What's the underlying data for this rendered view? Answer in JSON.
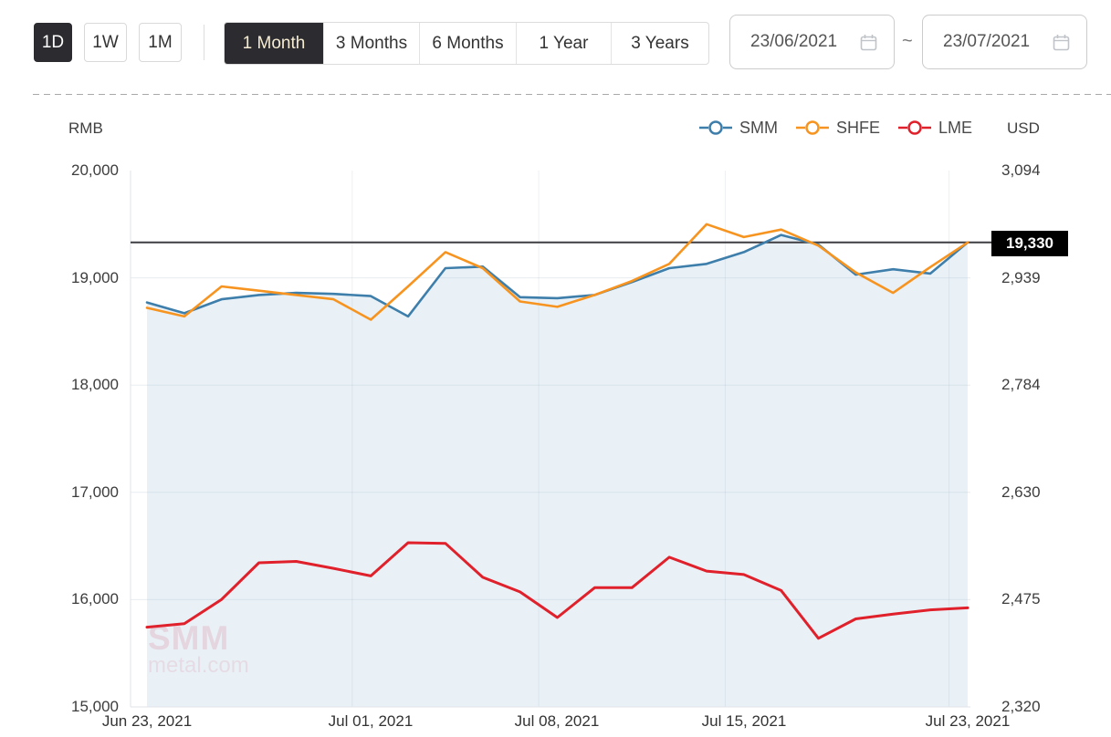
{
  "toolbar": {
    "interval_buttons": [
      {
        "label": "1D"
      },
      {
        "label": "1W"
      },
      {
        "label": "1M"
      }
    ],
    "range_tabs": [
      {
        "label": "1 Month"
      },
      {
        "label": "3 Months"
      },
      {
        "label": "6 Months"
      },
      {
        "label": "1 Year"
      },
      {
        "label": "3 Years"
      }
    ],
    "date_from": "23/06/2021",
    "date_separator": "~",
    "date_to": "23/07/2021"
  },
  "chart": {
    "left_axis_unit": "RMB",
    "right_axis_unit": "USD",
    "watermark": {
      "line1": "SMM",
      "line2": "metal.com"
    }
  },
  "chart_data": {
    "type": "line",
    "title": "",
    "legend_position": "top-right",
    "grid": true,
    "x": [
      "Jun 23",
      "Jun 24",
      "Jun 25",
      "Jun 28",
      "Jun 29",
      "Jun 30",
      "Jul 01",
      "Jul 02",
      "Jul 05",
      "Jul 06",
      "Jul 07",
      "Jul 08",
      "Jul 09",
      "Jul 12",
      "Jul 13",
      "Jul 14",
      "Jul 15",
      "Jul 16",
      "Jul 19",
      "Jul 20",
      "Jul 21",
      "Jul 22",
      "Jul 23"
    ],
    "x_tick_labels": [
      "Jun 23, 2021",
      "Jul 01, 2021",
      "Jul 08, 2021",
      "Jul 15, 2021",
      "Jul 23, 2021"
    ],
    "x_tick_indices": [
      0,
      6,
      11,
      16,
      22
    ],
    "series": [
      {
        "name": "SMM",
        "axis": "left",
        "color": "#3d7eab",
        "area": true,
        "area_color": "#e9f1f7",
        "values": [
          18770,
          18670,
          18800,
          18840,
          18860,
          18850,
          18830,
          18640,
          19090,
          19105,
          18820,
          18810,
          18840,
          18960,
          19090,
          19130,
          19240,
          19400,
          19310,
          19030,
          19080,
          19040,
          19330
        ]
      },
      {
        "name": "SHFE",
        "axis": "left",
        "color": "#f79420",
        "values": [
          18720,
          18640,
          18920,
          18880,
          18840,
          18800,
          18610,
          18920,
          19240,
          19090,
          18780,
          18730,
          18840,
          18970,
          19130,
          19500,
          19380,
          19450,
          19300,
          19050,
          18860,
          19100,
          19330
        ]
      },
      {
        "name": "LME",
        "axis": "right",
        "color": "#e0202a",
        "values": [
          2435,
          2440,
          2475,
          2528,
          2530,
          2520,
          2509,
          2557,
          2556,
          2507,
          2486,
          2449,
          2492,
          2492,
          2536,
          2516,
          2511,
          2488,
          2419,
          2447,
          2454,
          2460,
          2463
        ]
      }
    ],
    "y_axis_left": {
      "unit": "RMB",
      "range": [
        15000,
        20000
      ],
      "ticks": [
        "20,000",
        "19,000",
        "18,000",
        "17,000",
        "16,000",
        "15,000"
      ]
    },
    "y_axis_right": {
      "unit": "USD",
      "range": [
        2320,
        3094
      ],
      "ticks": [
        "3,094",
        "2,939",
        "2,784",
        "2,630",
        "2,475",
        "2,320"
      ]
    },
    "marker_line": {
      "value": 19330,
      "label": "19,330",
      "axis": "left",
      "color": "#3e3e42"
    }
  }
}
